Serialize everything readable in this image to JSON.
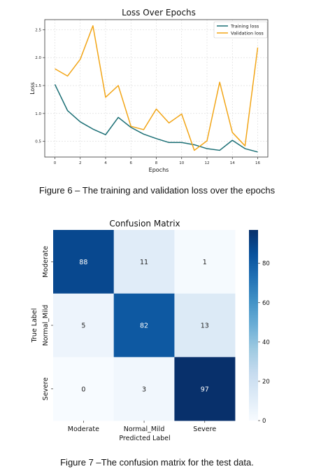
{
  "figures": {
    "fig6_caption": "Figure 6 – The training and validation loss over the epochs",
    "fig7_caption": "Figure 7 –The confusion matrix for the test data."
  },
  "chart_data": [
    {
      "type": "line",
      "title": "Loss Over Epochs",
      "xlabel": "Epochs",
      "ylabel": "Loss",
      "x": [
        0,
        1,
        2,
        3,
        4,
        5,
        6,
        7,
        8,
        9,
        10,
        11,
        12,
        13,
        14,
        15,
        16
      ],
      "xticks": [
        "0",
        "2",
        "4",
        "6",
        "8",
        "10",
        "12",
        "14",
        "16"
      ],
      "yticks": [
        "0.5",
        "1.0",
        "1.5",
        "2.0",
        "2.5"
      ],
      "xlim": [
        -0.8,
        16.8
      ],
      "ylim": [
        0.22,
        2.68
      ],
      "grid": true,
      "legend": "top-right",
      "series": [
        {
          "name": "Training loss",
          "color": "#1b6f75",
          "values": [
            1.52,
            1.05,
            0.85,
            0.72,
            0.62,
            0.93,
            0.75,
            0.63,
            0.55,
            0.48,
            0.48,
            0.44,
            0.37,
            0.34,
            0.52,
            0.37,
            0.31
          ]
        },
        {
          "name": "Validation loss",
          "color": "#f2a516",
          "values": [
            1.8,
            1.67,
            1.97,
            2.57,
            1.29,
            1.5,
            0.77,
            0.71,
            1.08,
            0.83,
            0.99,
            0.34,
            0.51,
            1.56,
            0.66,
            0.42,
            2.18
          ]
        }
      ]
    },
    {
      "type": "heatmap",
      "title": "Confusion Matrix",
      "xlabel": "Predicted Label",
      "ylabel": "True Label",
      "x_categories": [
        "Moderate",
        "Normal_Mild",
        "Severe"
      ],
      "y_categories": [
        "Moderate",
        "Normal_Mild",
        "Severe"
      ],
      "values": [
        [
          88,
          11,
          1
        ],
        [
          5,
          82,
          13
        ],
        [
          0,
          3,
          97
        ]
      ],
      "colorbar_ticks": [
        "0",
        "20",
        "40",
        "60",
        "80"
      ],
      "colorbar_range": [
        0,
        97
      ],
      "colormap": "Blues"
    }
  ]
}
